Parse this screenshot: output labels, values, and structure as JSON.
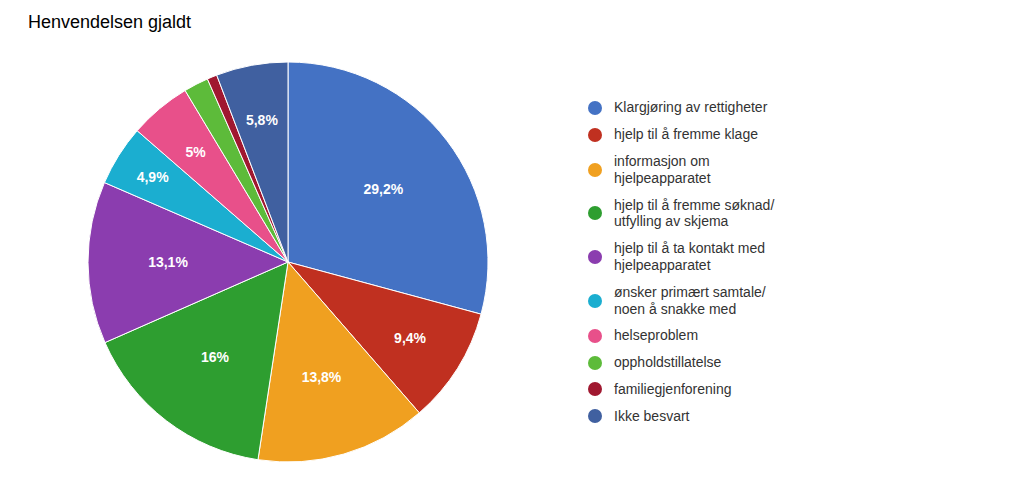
{
  "chart_data": {
    "type": "pie",
    "title": "Henvendelsen gjaldt",
    "categories": [
      "Klargjøring av rettigheter",
      "hjelp til å fremme klage",
      "informasjon om\nhjelpeapparatet",
      "hjelp til å fremme søknad/\nutfylling av skjema",
      "hjelp til å ta kontakt med\nhjelpeapparatet",
      "ønsker primært samtale/\nnoen å snakke med",
      "helseproblem",
      "oppholdstillatelse",
      "familiegjenforening",
      "Ikke besvart"
    ],
    "values": [
      29.2,
      9.4,
      13.8,
      16.0,
      13.1,
      4.9,
      5.0,
      2.0,
      0.8,
      5.8
    ],
    "value_labels": [
      "29,2%",
      "9,4%",
      "13,8%",
      "16%",
      "13,1%",
      "4,9%",
      "5%",
      null,
      null,
      "5,8%"
    ],
    "colors": [
      "#4472C4",
      "#C03020",
      "#F0A020",
      "#2E9E30",
      "#8B3DAF",
      "#1BAED0",
      "#E8508A",
      "#5DBB3A",
      "#A01830",
      "#4060A0"
    ],
    "data_labels": true,
    "legend": "right"
  }
}
